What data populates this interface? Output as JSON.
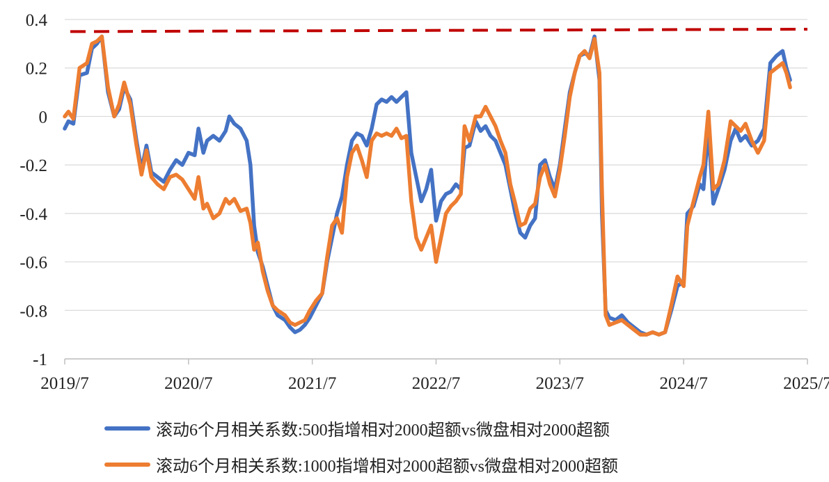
{
  "chart_data": {
    "type": "line",
    "yticks": [
      "0.4",
      "0.2",
      "0",
      "-0.2",
      "-0.4",
      "-0.6",
      "-0.8",
      "-1"
    ],
    "xticks": [
      "2019/7",
      "2020/7",
      "2021/7",
      "2022/7",
      "2023/7",
      "2024/7",
      "2025/7"
    ],
    "ylim": [
      -1,
      0.4
    ],
    "xlim": [
      2019.5,
      2025.5
    ],
    "grid": true,
    "legend_position": "bottom",
    "reference_line": {
      "y_start": 0.35,
      "y_end": 0.36,
      "color": "#c00000",
      "style": "dashed"
    },
    "series": [
      {
        "name": "滚动6个月相关系数:500指增相对2000超额vs微盘相对2000超额",
        "color": "#4472c4",
        "points": [
          [
            2019.5,
            -0.05
          ],
          [
            2019.53,
            -0.02
          ],
          [
            2019.57,
            -0.03
          ],
          [
            2019.62,
            0.17
          ],
          [
            2019.68,
            0.18
          ],
          [
            2019.72,
            0.28
          ],
          [
            2019.76,
            0.3
          ],
          [
            2019.8,
            0.33
          ],
          [
            2019.85,
            0.1
          ],
          [
            2019.9,
            0.0
          ],
          [
            2019.94,
            0.03
          ],
          [
            2019.98,
            0.12
          ],
          [
            2020.03,
            0.07
          ],
          [
            2020.08,
            -0.1
          ],
          [
            2020.12,
            -0.22
          ],
          [
            2020.16,
            -0.12
          ],
          [
            2020.2,
            -0.23
          ],
          [
            2020.25,
            -0.25
          ],
          [
            2020.3,
            -0.27
          ],
          [
            2020.35,
            -0.22
          ],
          [
            2020.4,
            -0.18
          ],
          [
            2020.45,
            -0.2
          ],
          [
            2020.5,
            -0.15
          ],
          [
            2020.55,
            -0.16
          ],
          [
            2020.58,
            -0.05
          ],
          [
            2020.62,
            -0.15
          ],
          [
            2020.65,
            -0.1
          ],
          [
            2020.7,
            -0.08
          ],
          [
            2020.75,
            -0.1
          ],
          [
            2020.8,
            -0.06
          ],
          [
            2020.83,
            0.0
          ],
          [
            2020.87,
            -0.03
          ],
          [
            2020.92,
            -0.05
          ],
          [
            2020.97,
            -0.1
          ],
          [
            2021.0,
            -0.2
          ],
          [
            2021.03,
            -0.45
          ],
          [
            2021.06,
            -0.56
          ],
          [
            2021.1,
            -0.62
          ],
          [
            2021.14,
            -0.7
          ],
          [
            2021.18,
            -0.78
          ],
          [
            2021.22,
            -0.82
          ],
          [
            2021.28,
            -0.84
          ],
          [
            2021.32,
            -0.87
          ],
          [
            2021.36,
            -0.89
          ],
          [
            2021.4,
            -0.88
          ],
          [
            2021.44,
            -0.86
          ],
          [
            2021.48,
            -0.83
          ],
          [
            2021.53,
            -0.78
          ],
          [
            2021.58,
            -0.73
          ],
          [
            2021.62,
            -0.6
          ],
          [
            2021.66,
            -0.5
          ],
          [
            2021.7,
            -0.4
          ],
          [
            2021.74,
            -0.33
          ],
          [
            2021.78,
            -0.2
          ],
          [
            2021.82,
            -0.1
          ],
          [
            2021.86,
            -0.07
          ],
          [
            2021.9,
            -0.08
          ],
          [
            2021.94,
            -0.12
          ],
          [
            2021.98,
            -0.05
          ],
          [
            2022.02,
            0.05
          ],
          [
            2022.06,
            0.07
          ],
          [
            2022.1,
            0.06
          ],
          [
            2022.14,
            0.08
          ],
          [
            2022.18,
            0.06
          ],
          [
            2022.22,
            0.08
          ],
          [
            2022.26,
            0.1
          ],
          [
            2022.3,
            -0.15
          ],
          [
            2022.34,
            -0.25
          ],
          [
            2022.38,
            -0.35
          ],
          [
            2022.42,
            -0.3
          ],
          [
            2022.46,
            -0.22
          ],
          [
            2022.5,
            -0.43
          ],
          [
            2022.54,
            -0.35
          ],
          [
            2022.58,
            -0.32
          ],
          [
            2022.62,
            -0.31
          ],
          [
            2022.66,
            -0.28
          ],
          [
            2022.7,
            -0.3
          ],
          [
            2022.73,
            -0.13
          ],
          [
            2022.77,
            -0.12
          ],
          [
            2022.82,
            -0.02
          ],
          [
            2022.86,
            -0.06
          ],
          [
            2022.9,
            -0.04
          ],
          [
            2022.94,
            -0.08
          ],
          [
            2022.98,
            -0.1
          ],
          [
            2023.02,
            -0.15
          ],
          [
            2023.06,
            -0.2
          ],
          [
            2023.1,
            -0.3
          ],
          [
            2023.14,
            -0.4
          ],
          [
            2023.18,
            -0.48
          ],
          [
            2023.22,
            -0.5
          ],
          [
            2023.26,
            -0.45
          ],
          [
            2023.3,
            -0.42
          ],
          [
            2023.34,
            -0.2
          ],
          [
            2023.38,
            -0.18
          ],
          [
            2023.42,
            -0.25
          ],
          [
            2023.46,
            -0.3
          ],
          [
            2023.5,
            -0.2
          ],
          [
            2023.54,
            -0.05
          ],
          [
            2023.58,
            0.1
          ],
          [
            2023.62,
            0.18
          ],
          [
            2023.66,
            0.25
          ],
          [
            2023.7,
            0.26
          ],
          [
            2023.74,
            0.25
          ],
          [
            2023.78,
            0.33
          ],
          [
            2023.82,
            0.15
          ],
          [
            2023.84,
            -0.4
          ],
          [
            2023.87,
            -0.8
          ],
          [
            2023.9,
            -0.83
          ],
          [
            2023.95,
            -0.84
          ],
          [
            2024.0,
            -0.82
          ],
          [
            2024.05,
            -0.85
          ],
          [
            2024.1,
            -0.87
          ],
          [
            2024.15,
            -0.89
          ],
          [
            2024.2,
            -0.9
          ],
          [
            2024.25,
            -0.89
          ],
          [
            2024.3,
            -0.9
          ],
          [
            2024.35,
            -0.89
          ],
          [
            2024.4,
            -0.8
          ],
          [
            2024.45,
            -0.7
          ],
          [
            2024.5,
            -0.68
          ],
          [
            2024.53,
            -0.4
          ],
          [
            2024.58,
            -0.37
          ],
          [
            2024.63,
            -0.28
          ],
          [
            2024.66,
            -0.3
          ],
          [
            2024.7,
            -0.05
          ],
          [
            2024.74,
            -0.36
          ],
          [
            2024.78,
            -0.3
          ],
          [
            2024.83,
            -0.22
          ],
          [
            2024.88,
            -0.1
          ],
          [
            2024.92,
            -0.05
          ],
          [
            2024.96,
            -0.1
          ],
          [
            2025.0,
            -0.08
          ],
          [
            2025.05,
            -0.12
          ],
          [
            2025.1,
            -0.1
          ],
          [
            2025.15,
            -0.05
          ],
          [
            2025.2,
            0.22
          ],
          [
            2025.25,
            0.25
          ],
          [
            2025.3,
            0.27
          ],
          [
            2025.33,
            0.2
          ],
          [
            2025.36,
            0.15
          ]
        ]
      },
      {
        "name": "滚动6个月相关系数:1000指增相对2000超额vs微盘相对2000超额",
        "color": "#ed7d31",
        "points": [
          [
            2019.5,
            0.0
          ],
          [
            2019.53,
            0.02
          ],
          [
            2019.57,
            -0.01
          ],
          [
            2019.62,
            0.2
          ],
          [
            2019.68,
            0.22
          ],
          [
            2019.72,
            0.3
          ],
          [
            2019.76,
            0.31
          ],
          [
            2019.8,
            0.33
          ],
          [
            2019.85,
            0.12
          ],
          [
            2019.9,
            0.0
          ],
          [
            2019.94,
            0.05
          ],
          [
            2019.98,
            0.14
          ],
          [
            2020.03,
            0.05
          ],
          [
            2020.08,
            -0.12
          ],
          [
            2020.12,
            -0.24
          ],
          [
            2020.16,
            -0.14
          ],
          [
            2020.2,
            -0.25
          ],
          [
            2020.25,
            -0.28
          ],
          [
            2020.3,
            -0.3
          ],
          [
            2020.35,
            -0.25
          ],
          [
            2020.4,
            -0.24
          ],
          [
            2020.45,
            -0.26
          ],
          [
            2020.5,
            -0.3
          ],
          [
            2020.55,
            -0.34
          ],
          [
            2020.58,
            -0.25
          ],
          [
            2020.62,
            -0.38
          ],
          [
            2020.65,
            -0.36
          ],
          [
            2020.7,
            -0.42
          ],
          [
            2020.75,
            -0.4
          ],
          [
            2020.8,
            -0.34
          ],
          [
            2020.83,
            -0.36
          ],
          [
            2020.87,
            -0.34
          ],
          [
            2020.92,
            -0.39
          ],
          [
            2020.97,
            -0.38
          ],
          [
            2021.0,
            -0.44
          ],
          [
            2021.03,
            -0.55
          ],
          [
            2021.06,
            -0.52
          ],
          [
            2021.1,
            -0.64
          ],
          [
            2021.14,
            -0.72
          ],
          [
            2021.18,
            -0.78
          ],
          [
            2021.22,
            -0.8
          ],
          [
            2021.28,
            -0.82
          ],
          [
            2021.32,
            -0.85
          ],
          [
            2021.36,
            -0.86
          ],
          [
            2021.4,
            -0.85
          ],
          [
            2021.44,
            -0.84
          ],
          [
            2021.48,
            -0.8
          ],
          [
            2021.53,
            -0.76
          ],
          [
            2021.58,
            -0.73
          ],
          [
            2021.62,
            -0.58
          ],
          [
            2021.66,
            -0.45
          ],
          [
            2021.7,
            -0.42
          ],
          [
            2021.74,
            -0.48
          ],
          [
            2021.78,
            -0.25
          ],
          [
            2021.82,
            -0.15
          ],
          [
            2021.86,
            -0.12
          ],
          [
            2021.9,
            -0.18
          ],
          [
            2021.94,
            -0.25
          ],
          [
            2021.98,
            -0.1
          ],
          [
            2022.02,
            -0.07
          ],
          [
            2022.06,
            -0.08
          ],
          [
            2022.1,
            -0.07
          ],
          [
            2022.14,
            -0.08
          ],
          [
            2022.18,
            -0.05
          ],
          [
            2022.22,
            -0.09
          ],
          [
            2022.26,
            -0.08
          ],
          [
            2022.3,
            -0.35
          ],
          [
            2022.34,
            -0.5
          ],
          [
            2022.38,
            -0.55
          ],
          [
            2022.42,
            -0.5
          ],
          [
            2022.46,
            -0.45
          ],
          [
            2022.5,
            -0.6
          ],
          [
            2022.54,
            -0.5
          ],
          [
            2022.58,
            -0.4
          ],
          [
            2022.62,
            -0.37
          ],
          [
            2022.66,
            -0.35
          ],
          [
            2022.7,
            -0.32
          ],
          [
            2022.73,
            -0.04
          ],
          [
            2022.77,
            -0.1
          ],
          [
            2022.82,
            0.0
          ],
          [
            2022.86,
            0.0
          ],
          [
            2022.9,
            0.04
          ],
          [
            2022.94,
            0.0
          ],
          [
            2022.98,
            -0.04
          ],
          [
            2023.02,
            -0.1
          ],
          [
            2023.06,
            -0.15
          ],
          [
            2023.1,
            -0.28
          ],
          [
            2023.14,
            -0.36
          ],
          [
            2023.18,
            -0.45
          ],
          [
            2023.22,
            -0.44
          ],
          [
            2023.26,
            -0.38
          ],
          [
            2023.3,
            -0.36
          ],
          [
            2023.34,
            -0.25
          ],
          [
            2023.38,
            -0.2
          ],
          [
            2023.42,
            -0.28
          ],
          [
            2023.46,
            -0.33
          ],
          [
            2023.5,
            -0.22
          ],
          [
            2023.54,
            -0.08
          ],
          [
            2023.58,
            0.08
          ],
          [
            2023.62,
            0.18
          ],
          [
            2023.66,
            0.25
          ],
          [
            2023.7,
            0.27
          ],
          [
            2023.74,
            0.24
          ],
          [
            2023.78,
            0.32
          ],
          [
            2023.82,
            0.18
          ],
          [
            2023.84,
            -0.3
          ],
          [
            2023.87,
            -0.82
          ],
          [
            2023.9,
            -0.86
          ],
          [
            2023.95,
            -0.85
          ],
          [
            2024.0,
            -0.84
          ],
          [
            2024.05,
            -0.86
          ],
          [
            2024.1,
            -0.88
          ],
          [
            2024.15,
            -0.9
          ],
          [
            2024.2,
            -0.9
          ],
          [
            2024.25,
            -0.89
          ],
          [
            2024.3,
            -0.9
          ],
          [
            2024.35,
            -0.89
          ],
          [
            2024.4,
            -0.78
          ],
          [
            2024.45,
            -0.66
          ],
          [
            2024.5,
            -0.7
          ],
          [
            2024.53,
            -0.45
          ],
          [
            2024.58,
            -0.35
          ],
          [
            2024.63,
            -0.25
          ],
          [
            2024.66,
            -0.2
          ],
          [
            2024.7,
            0.02
          ],
          [
            2024.74,
            -0.3
          ],
          [
            2024.78,
            -0.28
          ],
          [
            2024.83,
            -0.18
          ],
          [
            2024.88,
            -0.02
          ],
          [
            2024.92,
            -0.04
          ],
          [
            2024.96,
            -0.06
          ],
          [
            2025.0,
            -0.03
          ],
          [
            2025.05,
            -0.1
          ],
          [
            2025.1,
            -0.15
          ],
          [
            2025.15,
            -0.1
          ],
          [
            2025.2,
            0.18
          ],
          [
            2025.25,
            0.2
          ],
          [
            2025.3,
            0.22
          ],
          [
            2025.33,
            0.18
          ],
          [
            2025.36,
            0.12
          ]
        ]
      }
    ]
  }
}
